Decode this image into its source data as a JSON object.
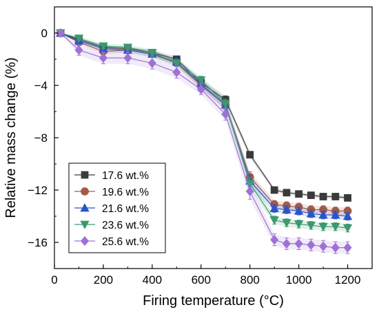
{
  "chart_data": {
    "type": "line",
    "title": "",
    "xlabel": "Firing temperature (°C)",
    "ylabel": "Relative mass change (%)",
    "xlim": [
      0,
      1300
    ],
    "ylim": [
      -18,
      2
    ],
    "xticks": [
      0,
      200,
      400,
      600,
      800,
      1000,
      1200
    ],
    "yticks": [
      0,
      -4,
      -8,
      -12,
      -16
    ],
    "x": [
      25,
      100,
      200,
      300,
      400,
      500,
      600,
      700,
      800,
      900,
      950,
      1000,
      1050,
      1100,
      1150,
      1200
    ],
    "legend_position": "lower-left",
    "series": [
      {
        "name": "17.6 wt.%",
        "color": "#3a3a3a",
        "marker": "square",
        "values": [
          0,
          -0.5,
          -1.1,
          -1.2,
          -1.5,
          -2.0,
          -3.8,
          -5.1,
          -9.3,
          -12.0,
          -12.2,
          -12.3,
          -12.4,
          -12.5,
          -12.5,
          -12.6
        ],
        "errors": [
          0,
          0.1,
          0.15,
          0.15,
          0.2,
          0.2,
          0.25,
          0.3,
          0.25,
          0.15,
          0.15,
          0.15,
          0.15,
          0.15,
          0.15,
          0.15
        ]
      },
      {
        "name": "19.6 wt.%",
        "color": "#a45a47",
        "marker": "circle",
        "values": [
          0,
          -0.7,
          -1.4,
          -1.3,
          -1.6,
          -2.3,
          -4.0,
          -5.5,
          -11.0,
          -13.1,
          -13.2,
          -13.3,
          -13.5,
          -13.5,
          -13.6,
          -13.6
        ],
        "errors": [
          0,
          0.15,
          0.2,
          0.2,
          0.25,
          0.25,
          0.3,
          0.35,
          0.4,
          0.3,
          0.3,
          0.3,
          0.3,
          0.3,
          0.3,
          0.3
        ]
      },
      {
        "name": "21.6 wt.%",
        "color": "#2b54c9",
        "marker": "triangle-up",
        "values": [
          0,
          -0.6,
          -1.2,
          -1.3,
          -1.6,
          -2.2,
          -3.9,
          -5.5,
          -11.3,
          -13.4,
          -13.5,
          -13.6,
          -13.8,
          -13.9,
          -13.9,
          -14.0
        ],
        "errors": [
          0,
          0.15,
          0.2,
          0.2,
          0.25,
          0.25,
          0.3,
          0.35,
          0.45,
          0.3,
          0.3,
          0.3,
          0.3,
          0.3,
          0.3,
          0.3
        ]
      },
      {
        "name": "23.6 wt.%",
        "color": "#3a9a6e",
        "marker": "triangle-down",
        "values": [
          0,
          -0.4,
          -1.0,
          -1.1,
          -1.5,
          -2.3,
          -3.6,
          -5.4,
          -11.5,
          -14.3,
          -14.5,
          -14.6,
          -14.7,
          -14.8,
          -14.8,
          -14.9
        ],
        "errors": [
          0,
          0.15,
          0.2,
          0.2,
          0.25,
          0.25,
          0.3,
          0.35,
          0.45,
          0.3,
          0.3,
          0.3,
          0.3,
          0.3,
          0.3,
          0.3
        ]
      },
      {
        "name": "25.6 wt.%",
        "color": "#9e72d4",
        "marker": "diamond",
        "values": [
          0,
          -1.3,
          -1.9,
          -1.9,
          -2.3,
          -3.0,
          -4.3,
          -6.2,
          -12.1,
          -15.8,
          -16.1,
          -16.1,
          -16.2,
          -16.3,
          -16.4,
          -16.4
        ],
        "errors": [
          0,
          0.4,
          0.45,
          0.45,
          0.45,
          0.45,
          0.4,
          0.45,
          0.6,
          0.45,
          0.45,
          0.45,
          0.45,
          0.45,
          0.45,
          0.45
        ]
      }
    ]
  }
}
